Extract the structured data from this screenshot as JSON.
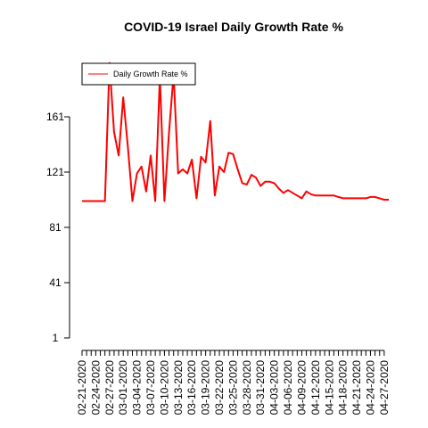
{
  "chart_data": {
    "type": "line",
    "title": "COVID-19 Israel Daily Growth Rate %",
    "xlabel": "",
    "ylabel": "",
    "y_ticks": [
      1,
      41,
      81,
      121,
      161
    ],
    "ylim": [
      1,
      200
    ],
    "x_tick_labels": [
      "02-21-2020",
      "02-24-2020",
      "02-27-2020",
      "03-01-2020",
      "03-04-2020",
      "03-07-2020",
      "03-10-2020",
      "03-13-2020",
      "03-16-2020",
      "03-19-2020",
      "03-22-2020",
      "03-25-2020",
      "03-28-2020",
      "03-31-2020",
      "04-03-2020",
      "04-06-2020",
      "04-09-2020",
      "04-12-2020",
      "04-15-2020",
      "04-18-2020",
      "04-21-2020",
      "04-24-2020",
      "04-27-2020"
    ],
    "legend_position": "top-left",
    "color": "#ff0000",
    "series": [
      {
        "name": "Daily Growth Rate %",
        "x": [
          "02-21-2020",
          "02-22-2020",
          "02-23-2020",
          "02-24-2020",
          "02-25-2020",
          "02-26-2020",
          "02-27-2020",
          "02-28-2020",
          "02-29-2020",
          "03-01-2020",
          "03-02-2020",
          "03-03-2020",
          "03-04-2020",
          "03-05-2020",
          "03-06-2020",
          "03-07-2020",
          "03-08-2020",
          "03-09-2020",
          "03-10-2020",
          "03-11-2020",
          "03-12-2020",
          "03-13-2020",
          "03-14-2020",
          "03-15-2020",
          "03-16-2020",
          "03-17-2020",
          "03-18-2020",
          "03-19-2020",
          "03-20-2020",
          "03-21-2020",
          "03-22-2020",
          "03-23-2020",
          "03-24-2020",
          "03-25-2020",
          "03-26-2020",
          "03-27-2020",
          "03-28-2020",
          "03-29-2020",
          "03-30-2020",
          "03-31-2020",
          "04-01-2020",
          "04-02-2020",
          "04-03-2020",
          "04-04-2020",
          "04-05-2020",
          "04-06-2020",
          "04-07-2020",
          "04-08-2020",
          "04-09-2020",
          "04-10-2020",
          "04-11-2020",
          "04-12-2020",
          "04-13-2020",
          "04-14-2020",
          "04-15-2020",
          "04-16-2020",
          "04-17-2020",
          "04-18-2020",
          "04-19-2020",
          "04-20-2020",
          "04-21-2020",
          "04-22-2020",
          "04-23-2020",
          "04-24-2020",
          "04-25-2020",
          "04-26-2020",
          "04-27-2020",
          "04-28-2020"
        ],
        "values": [
          100,
          100,
          100,
          100,
          100,
          100,
          200,
          150,
          133,
          175,
          140,
          100,
          120,
          125,
          107,
          133,
          100,
          190,
          100,
          150,
          192,
          120,
          123,
          120,
          130,
          102,
          132,
          128,
          158,
          104,
          125,
          121,
          135,
          134,
          123,
          113,
          112,
          119,
          117,
          111,
          114,
          114,
          113,
          109,
          106,
          108,
          106,
          104,
          102,
          107,
          105,
          104,
          104,
          104,
          104,
          104,
          103,
          102,
          102,
          102,
          102,
          102,
          102,
          103,
          103,
          102,
          101,
          101
        ]
      }
    ]
  }
}
